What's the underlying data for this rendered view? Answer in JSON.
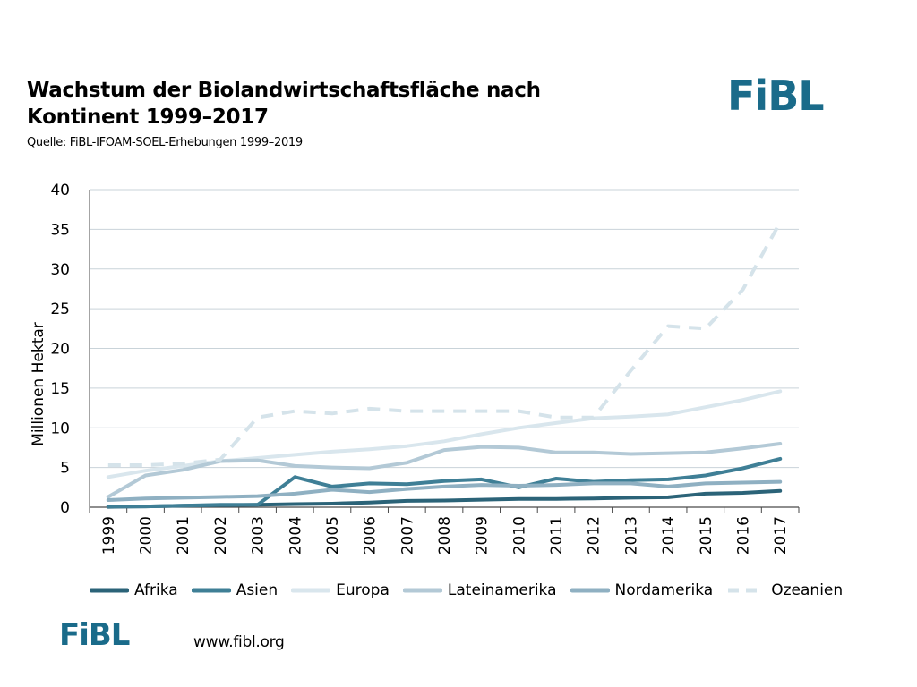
{
  "header": {
    "title_line1": "Wachstum der Biolandwirtschaftsfläche nach",
    "title_line2": "Kontinent 1999–2017",
    "subtitle": "Quelle: FiBL-IFOAM-SOEL-Erhebungen 1999–2019",
    "logo_text": "FiBL"
  },
  "footer": {
    "logo_text": "FiBL",
    "website": "www.fibl.org"
  },
  "colors": {
    "brand": "#1a6b8a",
    "grid": "#c9d3d9",
    "axis": "#4a4a4a"
  },
  "chart_data": {
    "type": "line",
    "title": "Wachstum der Biolandwirtschaftsfläche nach Kontinent 1999–2017",
    "xlabel": "",
    "ylabel": "Millionen Hektar",
    "ylim": [
      0,
      40
    ],
    "yticks": [
      0,
      5,
      10,
      15,
      20,
      25,
      30,
      35,
      40
    ],
    "grid": true,
    "legend_position": "bottom",
    "categories": [
      "1999",
      "2000",
      "2001",
      "2002",
      "2003",
      "2004",
      "2005",
      "2006",
      "2007",
      "2008",
      "2009",
      "2010",
      "2011",
      "2012",
      "2013",
      "2014",
      "2015",
      "2016",
      "2017"
    ],
    "series": [
      {
        "name": "Afrika",
        "color": "#2b6378",
        "dash": "solid",
        "values": [
          0.05,
          0.1,
          0.2,
          0.25,
          0.3,
          0.4,
          0.45,
          0.6,
          0.8,
          0.85,
          0.95,
          1.05,
          1.05,
          1.1,
          1.2,
          1.25,
          1.7,
          1.8,
          2.05
        ]
      },
      {
        "name": "Asien",
        "color": "#3f7f96",
        "dash": "solid",
        "values": [
          0.1,
          0.1,
          0.2,
          0.3,
          0.3,
          3.8,
          2.6,
          3.0,
          2.9,
          3.3,
          3.5,
          2.5,
          3.6,
          3.2,
          3.4,
          3.5,
          4.0,
          4.9,
          6.1
        ]
      },
      {
        "name": "Europa",
        "color": "#d9e6ed",
        "dash": "solid",
        "values": [
          3.8,
          4.6,
          5.2,
          5.8,
          6.2,
          6.6,
          7.0,
          7.3,
          7.7,
          8.3,
          9.2,
          10.0,
          10.6,
          11.2,
          11.4,
          11.7,
          12.6,
          13.5,
          14.6
        ]
      },
      {
        "name": "Lateinamerika",
        "color": "#b3c9d6",
        "dash": "solid",
        "values": [
          1.3,
          4.0,
          4.7,
          5.8,
          5.9,
          5.2,
          5.0,
          4.9,
          5.6,
          7.2,
          7.6,
          7.5,
          6.9,
          6.9,
          6.7,
          6.8,
          6.9,
          7.4,
          8.0
        ]
      },
      {
        "name": "Nordamerika",
        "color": "#8fb0c2",
        "dash": "solid",
        "values": [
          0.9,
          1.1,
          1.2,
          1.3,
          1.4,
          1.7,
          2.2,
          1.9,
          2.3,
          2.6,
          2.8,
          2.7,
          2.8,
          3.0,
          3.0,
          2.6,
          3.0,
          3.1,
          3.2
        ]
      },
      {
        "name": "Ozeanien",
        "color": "#d5e3ea",
        "dash": "dashed",
        "values": [
          5.3,
          5.3,
          5.5,
          6.0,
          11.3,
          12.1,
          11.8,
          12.4,
          12.1,
          12.1,
          12.1,
          12.1,
          11.3,
          11.3,
          17.2,
          22.8,
          22.5,
          27.4,
          35.9
        ]
      }
    ]
  }
}
